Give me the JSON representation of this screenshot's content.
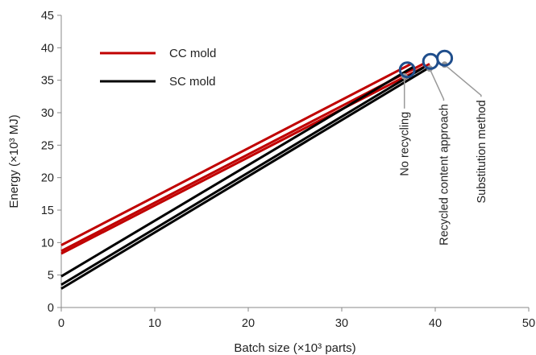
{
  "chart_data": {
    "type": "line",
    "title": "",
    "xlabel": "Batch size (×10³ parts)",
    "ylabel": "Energy (×10³ MJ)",
    "xlim": [
      0,
      50
    ],
    "ylim": [
      0,
      45
    ],
    "xticks": [
      0,
      10,
      20,
      30,
      40,
      50
    ],
    "yticks": [
      0,
      5,
      10,
      15,
      20,
      25,
      30,
      35,
      40,
      45
    ],
    "grid": false,
    "legend_position": "top-left",
    "legend": [
      {
        "label": "CC mold",
        "color": "#c00000"
      },
      {
        "label": "SC mold",
        "color": "#000000"
      }
    ],
    "series": [
      {
        "group": "CC mold",
        "color": "#c00000",
        "x": [
          0,
          37.4
        ],
        "y": [
          9.6,
          37.5
        ]
      },
      {
        "group": "CC mold",
        "color": "#c00000",
        "x": [
          0,
          38.7
        ],
        "y": [
          8.7,
          37.5
        ]
      },
      {
        "group": "CC mold",
        "color": "#c00000",
        "x": [
          0,
          39.4
        ],
        "y": [
          8.3,
          37.5
        ]
      },
      {
        "group": "SC mold",
        "color": "#000000",
        "x": [
          0,
          37.6
        ],
        "y": [
          4.8,
          37.0
        ]
      },
      {
        "group": "SC mold",
        "color": "#000000",
        "x": [
          0,
          38.8
        ],
        "y": [
          3.5,
          37.0
        ]
      },
      {
        "group": "SC mold",
        "color": "#000000",
        "x": [
          0,
          39.4
        ],
        "y": [
          2.9,
          37.0
        ]
      }
    ],
    "highlight_circles": [
      {
        "x": 37.0,
        "y": 36.6,
        "color": "#1f4e8c"
      },
      {
        "x": 39.5,
        "y": 37.9,
        "color": "#1f4e8c"
      },
      {
        "x": 41.0,
        "y": 38.4,
        "color": "#1f4e8c"
      }
    ],
    "annotations": [
      {
        "text": "No recycling",
        "point": {
          "x": 36.7,
          "y": 35.6
        },
        "label_x": 36.7
      },
      {
        "text": "Recycled content approach",
        "point": {
          "x": 39.4,
          "y": 36.8
        },
        "label_x": 40.9
      },
      {
        "text": "Substitution  method",
        "point": {
          "x": 41.0,
          "y": 37.4
        },
        "label_x": 44.9
      }
    ]
  }
}
